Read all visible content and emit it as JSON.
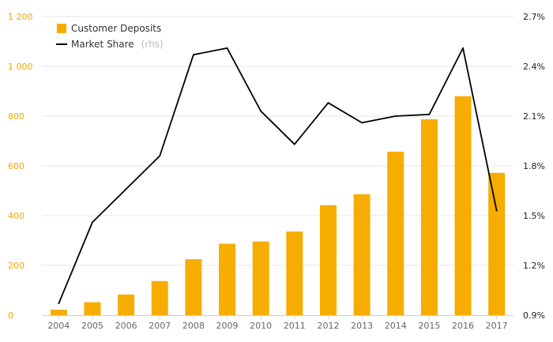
{
  "chart_data": {
    "type": "bar+line",
    "categories": [
      "2004",
      "2005",
      "2006",
      "2007",
      "2008",
      "2009",
      "2010",
      "2011",
      "2012",
      "2013",
      "2014",
      "2015",
      "2016",
      "2017"
    ],
    "series": [
      {
        "name": "Customer Deposits",
        "kind": "bar",
        "axis": "left",
        "color": "#f7ad00",
        "values": [
          22,
          52,
          83,
          137,
          225,
          287,
          296,
          336,
          442,
          486,
          657,
          787,
          880,
          572
        ]
      },
      {
        "name": "Market Share",
        "note": "(rhs)",
        "kind": "line",
        "axis": "right",
        "color": "#000000",
        "values": [
          0.97,
          1.46,
          1.66,
          1.86,
          2.47,
          2.51,
          2.13,
          1.93,
          2.18,
          2.06,
          2.1,
          2.11,
          2.51,
          1.53
        ]
      }
    ],
    "y_left": {
      "min": 0,
      "max": 1200,
      "ticks": [
        0,
        200,
        400,
        600,
        800,
        1000,
        1200
      ],
      "tick_labels": [
        "0",
        "200",
        "400",
        "600",
        "800",
        "1 000",
        "1 200"
      ],
      "color": "#f5a800"
    },
    "y_right": {
      "min": 0.9,
      "max": 2.7,
      "ticks": [
        0.9,
        1.2,
        1.5,
        1.8,
        2.1,
        2.4,
        2.7
      ],
      "tick_labels": [
        "0.9%",
        "1.2%",
        "1.5%",
        "1.8%",
        "2.1%",
        "2.4%",
        "2.7%"
      ],
      "color": "#222222"
    },
    "legend": {
      "position": "top-left",
      "items": [
        {
          "label": "Customer Deposits",
          "note": ""
        },
        {
          "label": "Market Share",
          "note": "(rhs)"
        }
      ]
    },
    "title": "",
    "xlabel": "",
    "ylabel": ""
  }
}
